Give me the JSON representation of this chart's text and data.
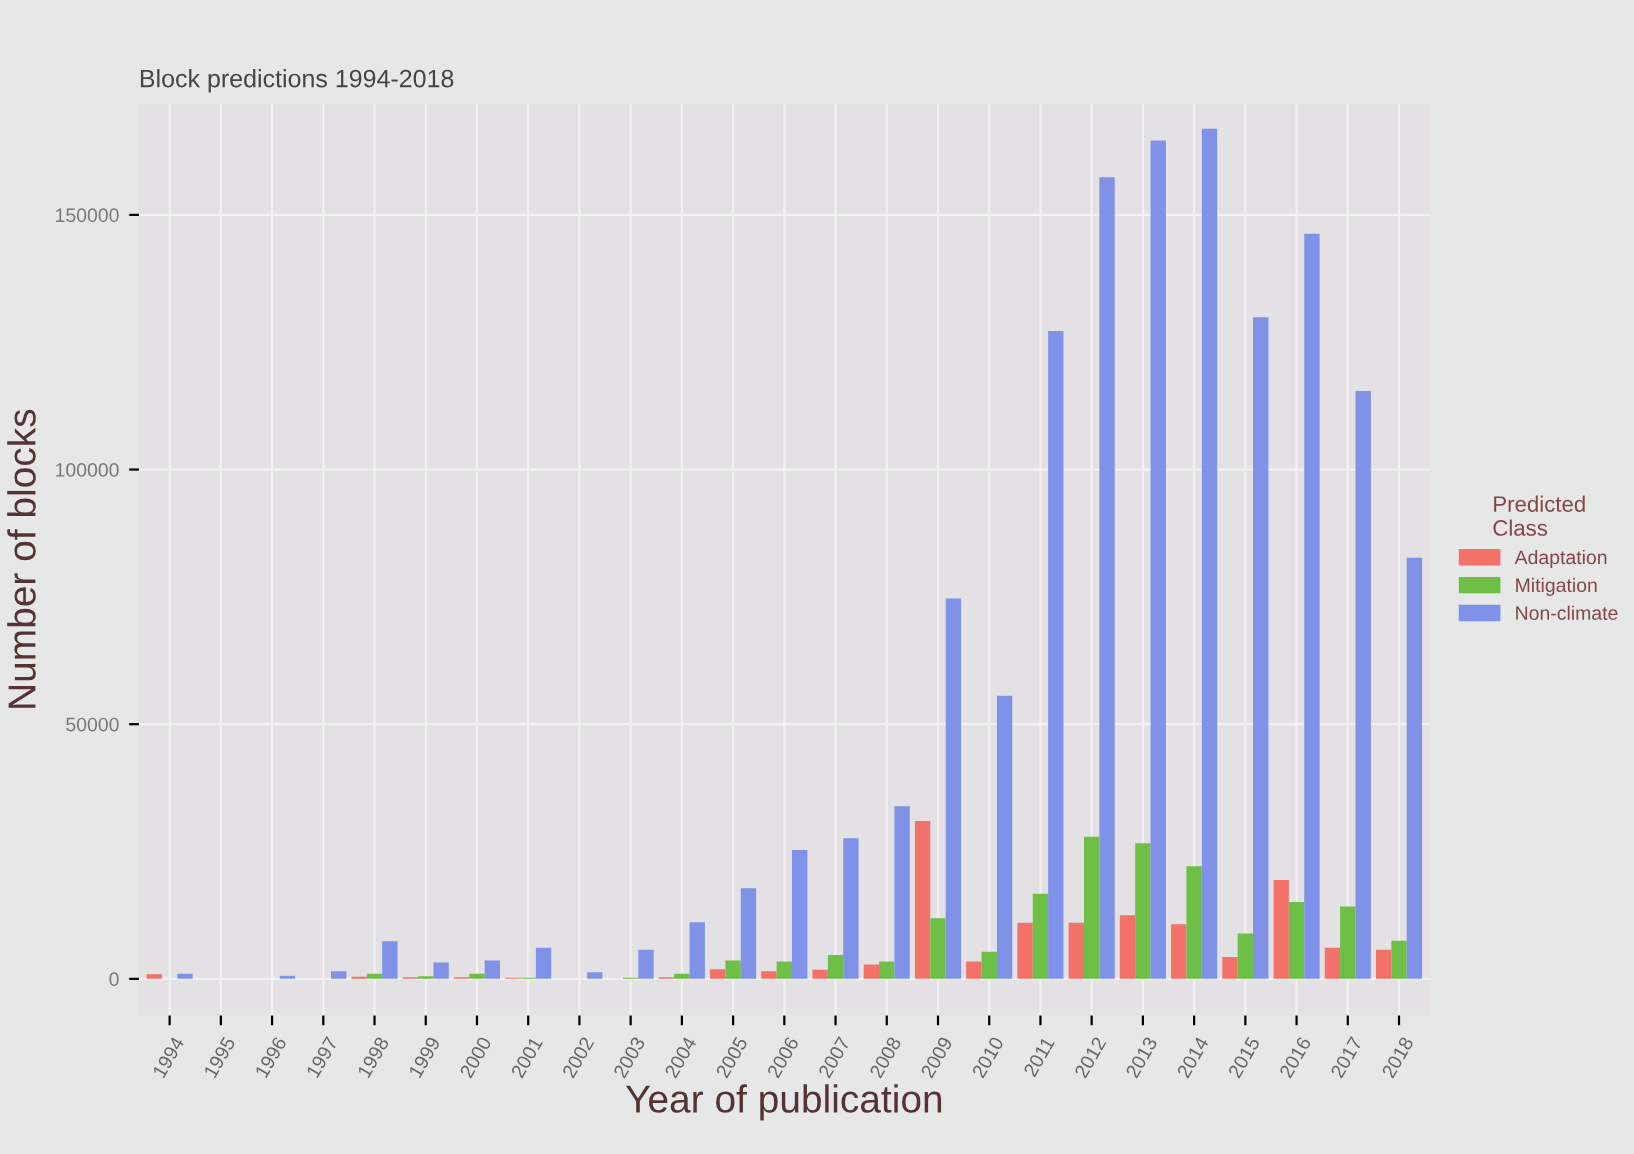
{
  "chart_data": {
    "type": "bar",
    "title": "Block predictions 1994-2018",
    "xlabel": "Year of publication",
    "ylabel": "Number of blocks",
    "legend_title": "Predicted\nClass",
    "categories": [
      "1994",
      "1995",
      "1996",
      "1997",
      "1998",
      "1999",
      "2000",
      "2001",
      "2002",
      "2003",
      "2004",
      "2005",
      "2006",
      "2007",
      "2008",
      "2009",
      "2010",
      "2011",
      "2012",
      "2013",
      "2014",
      "2015",
      "2016",
      "2017",
      "2018"
    ],
    "series": [
      {
        "name": "Adaptation",
        "color": "#f2726a",
        "values": [
          900,
          null,
          0,
          0,
          400,
          300,
          300,
          200,
          0,
          0,
          300,
          1900,
          1500,
          1800,
          2800,
          31000,
          3400,
          11000,
          11000,
          12500,
          10700,
          4300,
          19400,
          6100,
          5700
        ]
      },
      {
        "name": "Mitigation",
        "color": "#6dbf45",
        "values": [
          0,
          null,
          0,
          0,
          1000,
          500,
          1000,
          200,
          0,
          200,
          1000,
          3600,
          3400,
          4700,
          3400,
          11900,
          5300,
          16700,
          27900,
          26600,
          22100,
          8900,
          15100,
          14200,
          7500
        ]
      },
      {
        "name": "Non-climate",
        "color": "#7f92e8",
        "values": [
          1000,
          null,
          600,
          1500,
          7400,
          3200,
          3600,
          6100,
          1300,
          5700,
          11100,
          17800,
          25300,
          27600,
          33900,
          74700,
          55600,
          127200,
          157400,
          164600,
          166900,
          129900,
          146300,
          115400,
          82700
        ]
      }
    ],
    "ylim": [
      -7200,
      171800
    ],
    "yticks": [
      0,
      50000,
      100000,
      150000
    ],
    "grid": true,
    "legend": "right"
  }
}
